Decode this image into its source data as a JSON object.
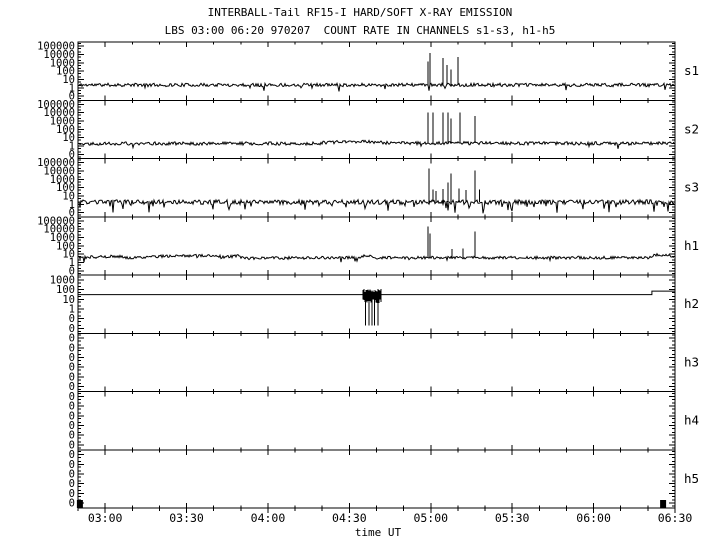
{
  "title": "INTERBALL-Tail RF15-I HARD/SOFT X-RAY EMISSION",
  "subtitle": "LBS 03:00 06:20 970207  COUNT RATE IN CHANNELS s1-s3, h1-h5",
  "chart_data": {
    "type": "line",
    "title": "INTERBALL-Tail RF15-I HARD/SOFT X-RAY EMISSION",
    "subtitle": "LBS 03:00 06:20 970207  COUNT RATE IN CHANNELS s1-s3, h1-h5",
    "xlabel": "time UT",
    "colors": {
      "background": "#ffffff",
      "foreground": "#000000"
    },
    "x_axis": {
      "start_min": 170,
      "end_min": 390,
      "minor_tick_step_min": 10,
      "major_tick_step_min": 30,
      "major_ticks": [
        {
          "min": 180,
          "label": "03:00"
        },
        {
          "min": 210,
          "label": "03:30"
        },
        {
          "min": 240,
          "label": "04:00"
        },
        {
          "min": 270,
          "label": "04:30"
        },
        {
          "min": 300,
          "label": "05:00"
        },
        {
          "min": 330,
          "label": "05:30"
        },
        {
          "min": 360,
          "label": "06:00"
        },
        {
          "min": 390,
          "label": "06:30"
        }
      ]
    },
    "y_axis_note": "log count rate; lowest decades print as 0",
    "interval_markers_min": [
      170.7,
      385.6
    ],
    "panels": [
      {
        "id": "s1",
        "label": "s1",
        "ytick_labels": [
          "100000",
          "10000",
          "1000",
          "100",
          "10",
          "1",
          "0"
        ],
        "top_exponent": 5.5,
        "trace": {
          "kind": "noisy",
          "seed": 11,
          "noise": 0.2,
          "dip_prob": 0.02,
          "dip_depth": 0.6,
          "baseline": [
            [
              170,
              2.2
            ],
            [
              390,
              2.2
            ]
          ],
          "spikes": [
            [
              299,
              1500
            ],
            [
              299.8,
              15000
            ],
            [
              304.5,
              3600
            ],
            [
              306,
              550
            ],
            [
              307.4,
              150
            ],
            [
              310,
              4800
            ]
          ]
        }
      },
      {
        "id": "s2",
        "label": "s2",
        "ytick_labels": [
          "100000",
          "10000",
          "1000",
          "100",
          "10",
          "1",
          "0"
        ],
        "top_exponent": 5.5,
        "trace": {
          "kind": "noisy",
          "seed": 22,
          "noise": 0.2,
          "dip_prob": 0.02,
          "dip_depth": 0.5,
          "baseline": [
            [
              170,
              2
            ],
            [
              258,
              2
            ],
            [
              266,
              3.2
            ],
            [
              276,
              3.4
            ],
            [
              284,
              2.3
            ],
            [
              390,
              2
            ]
          ],
          "spikes": [
            [
              299,
              11000
            ],
            [
              300.8,
              11000
            ],
            [
              304.5,
              11000
            ],
            [
              306.3,
              10000
            ],
            [
              307.4,
              2000
            ],
            [
              310.8,
              11000
            ],
            [
              316.3,
              3800
            ]
          ]
        }
      },
      {
        "id": "s3",
        "label": "s3",
        "ytick_labels": [
          "100000",
          "10000",
          "1000",
          "100",
          "10",
          "1",
          "0"
        ],
        "top_exponent": 5.5,
        "trace": {
          "kind": "noisy",
          "seed": 33,
          "noise": 0.28,
          "dip_prob": 0.06,
          "dip_depth": 0.9,
          "baseline": [
            [
              170,
              1.8
            ],
            [
              390,
              1.8
            ]
          ],
          "spikes": [
            [
              299.3,
              20000
            ],
            [
              300.8,
              60
            ],
            [
              302,
              40
            ],
            [
              304.5,
              70
            ],
            [
              306.3,
              400
            ],
            [
              307.4,
              5000
            ],
            [
              310.4,
              80
            ],
            [
              313,
              50
            ],
            [
              316.3,
              11000
            ],
            [
              318,
              60
            ]
          ]
        }
      },
      {
        "id": "h1",
        "label": "h1",
        "ytick_labels": [
          "100000",
          "10000",
          "1000",
          "100",
          "10",
          "1",
          "0"
        ],
        "top_exponent": 5.5,
        "trace": {
          "kind": "noisy",
          "seed": 44,
          "noise": 0.17,
          "dip_prob": 0.02,
          "dip_depth": 0.4,
          "baseline": [
            [
              170,
              4
            ],
            [
              185,
              5.5
            ],
            [
              189,
              3.5
            ],
            [
              197,
              5
            ],
            [
              206,
              6.5
            ],
            [
              216,
              6.5
            ],
            [
              224,
              4.8
            ],
            [
              229,
              6
            ],
            [
              231,
              3.2
            ],
            [
              262,
              3.8
            ],
            [
              273,
              3.8
            ],
            [
              276,
              7
            ],
            [
              280,
              3.8
            ],
            [
              370,
              3.8
            ],
            [
              381,
              4
            ],
            [
              383,
              8
            ],
            [
              388,
              7
            ],
            [
              390,
              4.5
            ]
          ],
          "spikes": [
            [
              299,
              20000
            ],
            [
              299.8,
              3200
            ],
            [
              307.8,
              45
            ],
            [
              311.8,
              50
            ],
            [
              316.3,
              5000
            ]
          ]
        }
      },
      {
        "id": "h2",
        "label": "h2",
        "ytick_labels": [
          "1000",
          "100",
          "10",
          "1",
          "0",
          "0"
        ],
        "top_exponent": 3.5,
        "trace": {
          "kind": "segments",
          "seed": 55,
          "segments": [
            [
              170,
              381.5,
              30
            ],
            [
              381.5,
              390,
              70
            ]
          ],
          "burst": {
            "t0": 275,
            "t1": 281.8,
            "vlow": 10,
            "vhigh": 140,
            "dropouts": [
              276,
              277.2,
              278.4,
              279.3,
              280.5
            ],
            "drop_to": 0.02
          }
        }
      },
      {
        "id": "h3",
        "label": "h3",
        "ytick_labels": [
          "0",
          "0",
          "0",
          "0",
          "0",
          "0"
        ],
        "top_exponent": 0,
        "trace": {
          "kind": "none"
        }
      },
      {
        "id": "h4",
        "label": "h4",
        "ytick_labels": [
          "0",
          "0",
          "0",
          "0",
          "0",
          "0"
        ],
        "top_exponent": 0,
        "trace": {
          "kind": "none"
        }
      },
      {
        "id": "h5",
        "label": "h5",
        "ytick_labels": [
          "0",
          "0",
          "0",
          "0",
          "0",
          "0"
        ],
        "top_exponent": 0,
        "trace": {
          "kind": "none"
        }
      }
    ]
  }
}
